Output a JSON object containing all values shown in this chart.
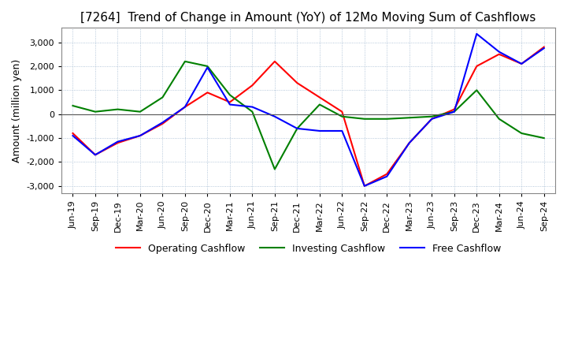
{
  "title": "[7264]  Trend of Change in Amount (YoY) of 12Mo Moving Sum of Cashflows",
  "ylabel": "Amount (million yen)",
  "ylim": [
    -3300,
    3600
  ],
  "yticks": [
    -3000,
    -2000,
    -1000,
    0,
    1000,
    2000,
    3000
  ],
  "x_labels": [
    "Jun-19",
    "Sep-19",
    "Dec-19",
    "Mar-20",
    "Jun-20",
    "Sep-20",
    "Dec-20",
    "Mar-21",
    "Jun-21",
    "Sep-21",
    "Dec-21",
    "Mar-22",
    "Jun-22",
    "Sep-22",
    "Dec-22",
    "Mar-23",
    "Jun-23",
    "Sep-23",
    "Dec-23",
    "Mar-24",
    "Jun-24",
    "Sep-24"
  ],
  "operating": [
    -800,
    -1700,
    -1200,
    -900,
    -400,
    300,
    900,
    500,
    1200,
    2200,
    1300,
    700,
    100,
    -3000,
    -2500,
    -1200,
    -200,
    200,
    2000,
    2500,
    2100,
    2800
  ],
  "investing": [
    350,
    100,
    200,
    100,
    700,
    2200,
    2000,
    800,
    100,
    -2300,
    -600,
    400,
    -100,
    -200,
    -200,
    -150,
    -100,
    100,
    1000,
    -200,
    -800,
    -1000
  ],
  "free": [
    -900,
    -1700,
    -1150,
    -900,
    -350,
    300,
    1950,
    400,
    300,
    -100,
    -600,
    -700,
    -700,
    -3000,
    -2600,
    -1200,
    -200,
    100,
    3350,
    2600,
    2100,
    2750
  ],
  "operating_color": "#ff0000",
  "investing_color": "#008000",
  "free_color": "#0000ff",
  "background_color": "#ffffff",
  "grid_color": "#a0b8d0",
  "title_fontsize": 11,
  "label_fontsize": 9,
  "tick_fontsize": 8
}
